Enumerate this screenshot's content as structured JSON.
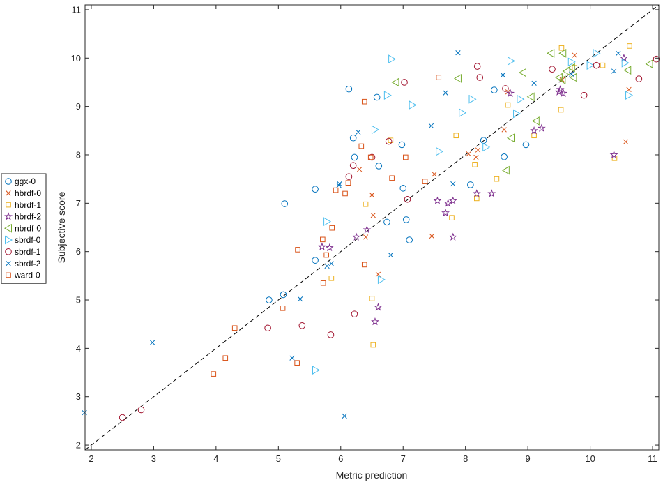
{
  "chart_data": {
    "type": "scatter",
    "xlabel": "Metric prediction",
    "ylabel": "Subjective score",
    "xlim": [
      1.9,
      11.1
    ],
    "ylim": [
      1.9,
      11.1
    ],
    "xticks": [
      2,
      3,
      4,
      5,
      6,
      7,
      8,
      9,
      10,
      11
    ],
    "yticks": [
      2,
      3,
      4,
      5,
      6,
      7,
      8,
      9,
      10,
      11
    ],
    "grid": false,
    "legend_position": "outside-left",
    "reference_line": {
      "style": "dashed",
      "color": "#000000",
      "from": [
        1.9,
        1.9
      ],
      "to": [
        11.1,
        11.1
      ]
    },
    "series": [
      {
        "name": "ggx-0",
        "marker": "circle",
        "color": "#0072BD",
        "points": [
          [
            4.85,
            5.0
          ],
          [
            5.08,
            5.11
          ],
          [
            5.1,
            6.99
          ],
          [
            5.59,
            5.82
          ],
          [
            5.59,
            7.29
          ],
          [
            6.13,
            9.36
          ],
          [
            6.2,
            8.35
          ],
          [
            6.22,
            7.95
          ],
          [
            6.58,
            9.19
          ],
          [
            6.61,
            7.77
          ],
          [
            6.74,
            6.61
          ],
          [
            6.98,
            8.21
          ],
          [
            7.0,
            7.31
          ],
          [
            7.05,
            6.66
          ],
          [
            7.1,
            6.24
          ],
          [
            8.08,
            7.38
          ],
          [
            8.29,
            8.3
          ],
          [
            8.46,
            9.34
          ],
          [
            8.62,
            7.96
          ],
          [
            8.97,
            8.21
          ]
        ]
      },
      {
        "name": "hbrdf-0",
        "marker": "x",
        "color": "#D95319",
        "points": [
          [
            6.3,
            7.7
          ],
          [
            6.4,
            6.3
          ],
          [
            6.5,
            7.17
          ],
          [
            6.52,
            6.75
          ],
          [
            6.6,
            5.53
          ],
          [
            7.46,
            6.32
          ],
          [
            7.5,
            7.6
          ],
          [
            8.05,
            8.02
          ],
          [
            8.17,
            7.95
          ],
          [
            8.2,
            8.1
          ],
          [
            8.62,
            8.52
          ],
          [
            8.68,
            9.3
          ],
          [
            9.55,
            9.55
          ],
          [
            9.75,
            10.06
          ],
          [
            10.57,
            8.27
          ],
          [
            10.62,
            9.35
          ]
        ]
      },
      {
        "name": "hbrdf-1",
        "marker": "square",
        "color": "#EDB120",
        "points": [
          [
            5.85,
            5.45
          ],
          [
            6.4,
            6.98
          ],
          [
            6.5,
            5.03
          ],
          [
            6.52,
            4.07
          ],
          [
            6.8,
            8.3
          ],
          [
            7.78,
            6.7
          ],
          [
            7.85,
            8.4
          ],
          [
            8.15,
            7.8
          ],
          [
            8.18,
            7.1
          ],
          [
            8.5,
            7.5
          ],
          [
            8.68,
            9.03
          ],
          [
            9.1,
            8.4
          ],
          [
            9.53,
            8.93
          ],
          [
            9.54,
            10.21
          ],
          [
            9.75,
            9.8
          ],
          [
            10.2,
            9.85
          ],
          [
            10.39,
            7.93
          ],
          [
            10.63,
            10.25
          ]
        ]
      },
      {
        "name": "hbrdf-2",
        "marker": "star",
        "color": "#7E2F8E",
        "points": [
          [
            5.7,
            6.1
          ],
          [
            5.82,
            6.08
          ],
          [
            6.25,
            6.3
          ],
          [
            6.42,
            6.45
          ],
          [
            6.55,
            4.55
          ],
          [
            6.6,
            4.85
          ],
          [
            7.55,
            7.05
          ],
          [
            7.68,
            6.8
          ],
          [
            7.72,
            7.0
          ],
          [
            7.8,
            6.3
          ],
          [
            7.8,
            7.05
          ],
          [
            8.18,
            7.2
          ],
          [
            8.42,
            7.2
          ],
          [
            8.72,
            9.27
          ],
          [
            9.1,
            8.5
          ],
          [
            9.22,
            8.55
          ],
          [
            9.5,
            9.3
          ],
          [
            9.52,
            9.35
          ],
          [
            9.57,
            9.27
          ],
          [
            10.38,
            8.0
          ],
          [
            10.54,
            10.0
          ]
        ]
      },
      {
        "name": "nbrdf-0",
        "marker": "triangle-left",
        "color": "#77AC30",
        "points": [
          [
            6.88,
            9.5
          ],
          [
            7.88,
            9.58
          ],
          [
            8.65,
            7.68
          ],
          [
            8.73,
            8.35
          ],
          [
            8.92,
            9.7
          ],
          [
            9.05,
            9.2
          ],
          [
            9.13,
            8.7
          ],
          [
            9.37,
            10.1
          ],
          [
            9.5,
            9.6
          ],
          [
            9.55,
            9.55
          ],
          [
            9.56,
            10.1
          ],
          [
            9.62,
            9.73
          ],
          [
            9.7,
            9.8
          ],
          [
            9.73,
            9.6
          ],
          [
            10.6,
            9.75
          ],
          [
            10.95,
            9.88
          ]
        ]
      },
      {
        "name": "sbrdf-0",
        "marker": "triangle-right",
        "color": "#4DBEEE",
        "points": [
          [
            5.6,
            3.55
          ],
          [
            5.78,
            6.62
          ],
          [
            6.55,
            8.52
          ],
          [
            6.65,
            5.42
          ],
          [
            6.75,
            9.23
          ],
          [
            6.82,
            9.98
          ],
          [
            7.15,
            9.03
          ],
          [
            7.58,
            8.07
          ],
          [
            7.95,
            8.87
          ],
          [
            8.11,
            9.15
          ],
          [
            8.33,
            8.16
          ],
          [
            8.73,
            9.94
          ],
          [
            8.82,
            8.85
          ],
          [
            8.88,
            9.15
          ],
          [
            9.7,
            9.92
          ],
          [
            10.0,
            9.85
          ],
          [
            10.1,
            10.1
          ],
          [
            10.56,
            9.9
          ],
          [
            10.62,
            9.23
          ]
        ]
      },
      {
        "name": "sbrdf-1",
        "marker": "circle",
        "color": "#A2142F",
        "points": [
          [
            2.5,
            2.57
          ],
          [
            2.8,
            2.73
          ],
          [
            4.83,
            4.42
          ],
          [
            5.38,
            4.47
          ],
          [
            5.84,
            4.28
          ],
          [
            6.13,
            7.55
          ],
          [
            6.2,
            7.78
          ],
          [
            6.22,
            4.71
          ],
          [
            6.5,
            7.95
          ],
          [
            6.77,
            8.28
          ],
          [
            7.02,
            9.5
          ],
          [
            7.07,
            7.08
          ],
          [
            8.19,
            9.83
          ],
          [
            8.23,
            9.6
          ],
          [
            8.64,
            9.37
          ],
          [
            9.39,
            9.77
          ],
          [
            9.9,
            9.23
          ],
          [
            10.1,
            9.85
          ],
          [
            10.78,
            9.57
          ],
          [
            11.06,
            9.98
          ]
        ]
      },
      {
        "name": "sbrdf-2",
        "marker": "x",
        "color": "#0072BD",
        "points": [
          [
            1.89,
            2.67
          ],
          [
            2.98,
            4.12
          ],
          [
            5.22,
            3.8
          ],
          [
            5.35,
            5.02
          ],
          [
            5.78,
            5.7
          ],
          [
            5.85,
            5.75
          ],
          [
            5.97,
            7.37
          ],
          [
            5.98,
            7.4
          ],
          [
            6.06,
            2.6
          ],
          [
            6.28,
            8.47
          ],
          [
            6.8,
            5.93
          ],
          [
            7.45,
            8.6
          ],
          [
            7.68,
            9.28
          ],
          [
            7.8,
            7.4
          ],
          [
            7.88,
            10.11
          ],
          [
            8.6,
            9.65
          ],
          [
            9.1,
            9.48
          ],
          [
            9.7,
            9.67
          ],
          [
            10.38,
            9.73
          ],
          [
            10.45,
            10.1
          ]
        ]
      },
      {
        "name": "ward-0",
        "marker": "square",
        "color": "#D95319",
        "points": [
          [
            3.96,
            3.47
          ],
          [
            4.15,
            3.8
          ],
          [
            4.3,
            4.42
          ],
          [
            5.07,
            4.83
          ],
          [
            5.3,
            3.7
          ],
          [
            5.31,
            6.04
          ],
          [
            5.71,
            6.25
          ],
          [
            5.72,
            5.35
          ],
          [
            5.77,
            5.93
          ],
          [
            5.86,
            6.49
          ],
          [
            5.92,
            7.27
          ],
          [
            6.07,
            7.2
          ],
          [
            6.12,
            7.42
          ],
          [
            6.33,
            8.18
          ],
          [
            6.38,
            9.1
          ],
          [
            6.38,
            5.73
          ],
          [
            6.48,
            7.95
          ],
          [
            6.82,
            7.52
          ],
          [
            7.04,
            7.95
          ],
          [
            7.35,
            7.45
          ],
          [
            7.57,
            9.6
          ]
        ]
      }
    ]
  }
}
